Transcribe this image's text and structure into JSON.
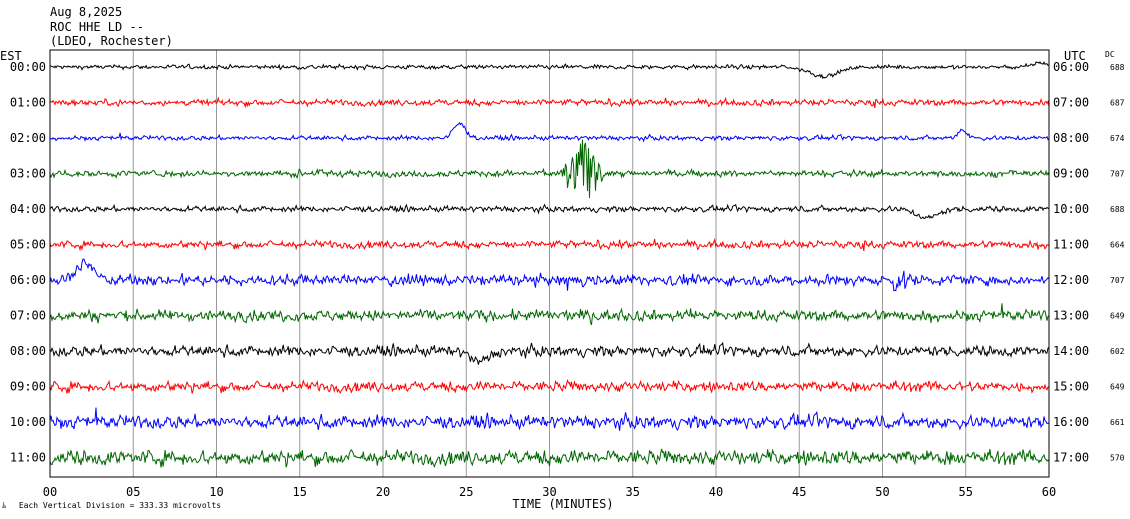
{
  "header": {
    "date": "Aug 8,2025",
    "station": "ROC HHE LD --",
    "network": "(LDEO, Rochester)"
  },
  "labels": {
    "left_timezone": "EST",
    "right_timezone": "UTC",
    "dc_header": "DC",
    "footnote": "Each Vertical Division =  333.33 microvolts",
    "xlabel": "TIME (MINUTES)"
  },
  "colors": {
    "grid": "#999999",
    "frame": "#000000",
    "text": "#000000",
    "trace_cycle": [
      "#000000",
      "#ff0000",
      "#0000ff",
      "#006600"
    ]
  },
  "chart_data": {
    "type": "line",
    "title": "ROC HHE LD --",
    "xlabel": "TIME (MINUTES)",
    "xlim": [
      0,
      60
    ],
    "xticks": [
      0,
      5,
      10,
      15,
      20,
      25,
      30,
      35,
      40,
      45,
      50,
      55,
      60
    ],
    "xtick_labels": [
      "00",
      "05",
      "10",
      "15",
      "20",
      "25",
      "30",
      "35",
      "40",
      "45",
      "50",
      "55",
      "60"
    ],
    "grid": true,
    "traces": [
      {
        "est": "00:00",
        "utc": "06:00",
        "dc": "688",
        "color": "#000000",
        "noise": 0.28,
        "events": [
          {
            "minute": 46.5,
            "width": 1.2,
            "amp": -1.0
          },
          {
            "minute": 59.5,
            "width": 0.6,
            "amp": 0.5
          }
        ]
      },
      {
        "est": "01:00",
        "utc": "07:00",
        "dc": "687",
        "color": "#ff0000",
        "noise": 0.42,
        "events": []
      },
      {
        "est": "02:00",
        "utc": "08:00",
        "dc": "674",
        "color": "#0000ff",
        "noise": 0.3,
        "events": [
          {
            "minute": 24.6,
            "width": 0.5,
            "amp": 1.6
          },
          {
            "minute": 54.8,
            "width": 0.4,
            "amp": 0.9
          }
        ]
      },
      {
        "est": "03:00",
        "utc": "09:00",
        "dc": "707",
        "color": "#006600",
        "noise": 0.42,
        "events": [
          {
            "minute": 32.0,
            "width": 0.9,
            "amp": 4.0,
            "burst": true
          }
        ]
      },
      {
        "est": "04:00",
        "utc": "10:00",
        "dc": "688",
        "color": "#000000",
        "noise": 0.38,
        "events": [
          {
            "minute": 52.7,
            "width": 0.9,
            "amp": -1.0
          }
        ]
      },
      {
        "est": "05:00",
        "utc": "11:00",
        "dc": "664",
        "color": "#ff0000",
        "noise": 0.5,
        "events": []
      },
      {
        "est": "06:00",
        "utc": "12:00",
        "dc": "707",
        "color": "#0000ff",
        "noise": 0.7,
        "events": [
          {
            "minute": 2.1,
            "width": 0.8,
            "amp": 1.8
          },
          {
            "minute": 51.0,
            "width": 0.6,
            "amp": 1.2,
            "burst": true
          }
        ]
      },
      {
        "est": "07:00",
        "utc": "13:00",
        "dc": "649",
        "color": "#006600",
        "noise": 0.72,
        "events": []
      },
      {
        "est": "08:00",
        "utc": "14:00",
        "dc": "602",
        "color": "#000000",
        "noise": 0.7,
        "events": [
          {
            "minute": 25.8,
            "width": 0.8,
            "amp": -1.2
          }
        ]
      },
      {
        "est": "09:00",
        "utc": "15:00",
        "dc": "649",
        "color": "#ff0000",
        "noise": 0.7,
        "events": []
      },
      {
        "est": "10:00",
        "utc": "16:00",
        "dc": "661",
        "color": "#0000ff",
        "noise": 0.85,
        "events": []
      },
      {
        "est": "11:00",
        "utc": "17:00",
        "dc": "570",
        "color": "#006600",
        "noise": 1.0,
        "events": []
      }
    ]
  }
}
